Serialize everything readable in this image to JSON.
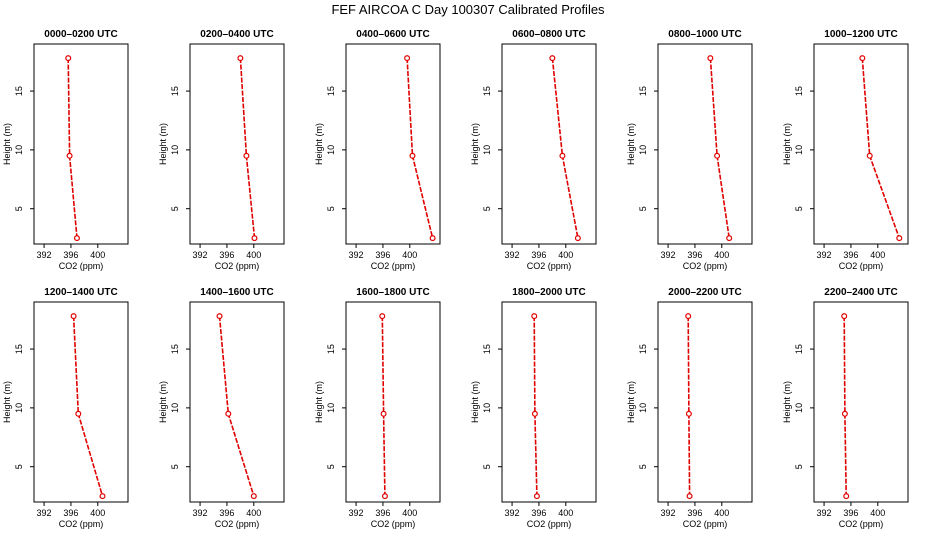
{
  "title": "FEF AIRCOA C  Day 100307  Calibrated Profiles",
  "colors": {
    "series": "#e00000",
    "axis": "#000000"
  },
  "chart_data": {
    "type": "line",
    "layout": "2 rows x 6 columns of small-multiple panels",
    "xlabel": "CO2 (ppm)",
    "ylabel": "Height (m)",
    "xlim": [
      390.5,
      404.5
    ],
    "ylim": [
      2,
      19
    ],
    "xticks": [
      392,
      396,
      400
    ],
    "yticks": [
      5,
      10,
      15
    ],
    "heights": [
      17.8,
      9.5,
      2.5
    ],
    "marker": "open circle",
    "panels": [
      {
        "title": "0000–0200 UTC",
        "values": [
          395.6,
          395.8,
          396.9
        ]
      },
      {
        "title": "0200–0400 UTC",
        "values": [
          398.0,
          398.9,
          400.1
        ]
      },
      {
        "title": "0400–0600 UTC",
        "values": [
          399.6,
          400.4,
          403.4
        ]
      },
      {
        "title": "0600–0800 UTC",
        "values": [
          398.0,
          399.5,
          401.8
        ]
      },
      {
        "title": "0800–1000 UTC",
        "values": [
          398.3,
          399.3,
          401.1
        ]
      },
      {
        "title": "1000–1200 UTC",
        "values": [
          397.7,
          398.8,
          403.2
        ]
      },
      {
        "title": "1200–1400 UTC",
        "values": [
          396.4,
          397.1,
          400.7
        ]
      },
      {
        "title": "1400–1600 UTC",
        "values": [
          394.9,
          396.2,
          400.0
        ]
      },
      {
        "title": "1600–1800 UTC",
        "values": [
          395.9,
          396.1,
          396.3
        ]
      },
      {
        "title": "1800–2000 UTC",
        "values": [
          395.3,
          395.4,
          395.7
        ]
      },
      {
        "title": "2000–2200 UTC",
        "values": [
          395.0,
          395.1,
          395.2
        ]
      },
      {
        "title": "2200–2400 UTC",
        "values": [
          395.0,
          395.1,
          395.3
        ]
      }
    ]
  }
}
